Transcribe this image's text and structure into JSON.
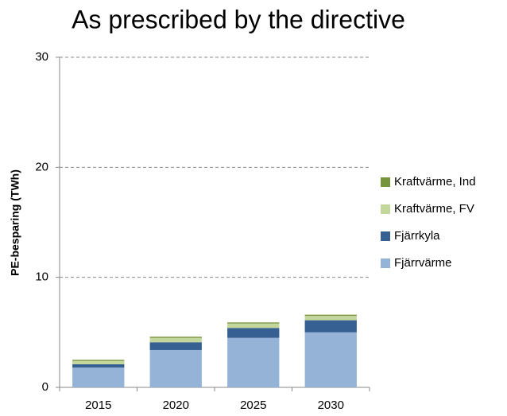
{
  "chart_data": {
    "type": "stacked-bar",
    "title": "As prescribed by the directive",
    "y_label": "PE-besparing (TWh)",
    "categories": [
      "2015",
      "2020",
      "2025",
      "2030"
    ],
    "series": [
      {
        "name": "Fjärrvärme",
        "color": "#95b3d7",
        "values": [
          1.8,
          3.4,
          4.5,
          5.0
        ]
      },
      {
        "name": "Fjärrkyla",
        "color": "#376092",
        "values": [
          0.3,
          0.7,
          0.9,
          1.1
        ]
      },
      {
        "name": "Kraftvärme, FV",
        "color": "#c3d69b",
        "values": [
          0.3,
          0.4,
          0.4,
          0.4
        ]
      },
      {
        "name": "Kraftvärme, Ind",
        "color": "#77933c",
        "values": [
          0.1,
          0.1,
          0.1,
          0.1
        ]
      }
    ],
    "ylim": [
      0,
      30
    ],
    "yticks": [
      0,
      10,
      20,
      30
    ],
    "grid": true,
    "legend": "right"
  }
}
